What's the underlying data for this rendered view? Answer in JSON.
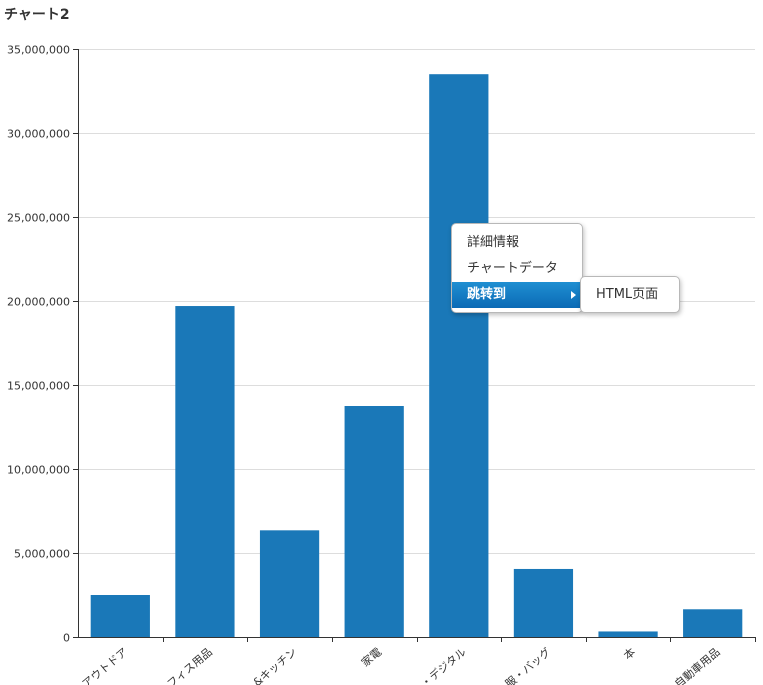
{
  "chart_data": {
    "type": "bar",
    "title": "チャート2",
    "categories": [
      "アウトドア",
      "オフィス用品",
      "ホーム&キッチン",
      "家電",
      "PC・デジタル",
      "衣服・バッグ",
      "本",
      "自動車用品"
    ],
    "category_labels_visible": [
      "アウトドア",
      "フィス用品",
      "&キッチン",
      "家電",
      "・デジタル",
      "服・バッグ",
      "本",
      "自動車用品"
    ],
    "values": [
      2500000,
      19700000,
      6350000,
      13750000,
      33500000,
      4050000,
      330000,
      1650000
    ],
    "ylim": [
      0,
      35000000
    ],
    "yticks": [
      0,
      5000000,
      10000000,
      15000000,
      20000000,
      25000000,
      30000000,
      35000000
    ],
    "ytick_labels": [
      "0",
      "5,000,000",
      "10,000,000",
      "15,000,000",
      "20,000,000",
      "25,000,000",
      "30,000,000",
      "35,000,000"
    ],
    "grid": true,
    "bar_color": "#1a78b8"
  },
  "context_menu": {
    "items": [
      {
        "label": "詳細情報"
      },
      {
        "label": "チャートデータ"
      },
      {
        "label": "跳转到"
      }
    ],
    "submenu": {
      "items": [
        {
          "label": "HTML页面"
        }
      ]
    }
  }
}
